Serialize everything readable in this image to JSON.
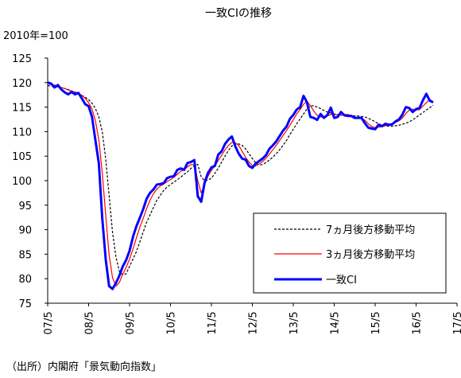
{
  "source_note": "（出所）内閣府「景気動向指数」",
  "chart_data": {
    "type": "line",
    "title": "一致CIの推移",
    "unit_label": "2010年=100",
    "xlabel": "",
    "ylabel": "",
    "ylim": [
      75,
      125
    ],
    "y_ticks": [
      75,
      80,
      85,
      90,
      95,
      100,
      105,
      110,
      115,
      120,
      125
    ],
    "x_start": "2007-05",
    "x_ticks": [
      "07/5",
      "08/5",
      "09/5",
      "10/5",
      "11/5",
      "12/5",
      "13/5",
      "14/5",
      "15/5",
      "16/5",
      "17/5"
    ],
    "grid": false,
    "legend_position": "bottom-right",
    "series": [
      {
        "name": "7ヵ月後方移動平均",
        "color": "#000000",
        "style": "dashed",
        "values": [
          119.4,
          119.3,
          119.2,
          119.1,
          118.9,
          118.8,
          118.6,
          118.3,
          118.1,
          117.8,
          117.4,
          117.0,
          116.5,
          115.8,
          114.7,
          113.0,
          110.0,
          104.5,
          97.0,
          89.5,
          84.5,
          81.5,
          80.8,
          81.0,
          82.5,
          84.0,
          85.5,
          87.5,
          89.5,
          91.5,
          93.0,
          94.5,
          96.0,
          97.0,
          98.0,
          98.7,
          99.2,
          99.7,
          100.2,
          100.7,
          101.3,
          101.8,
          102.5,
          103.0,
          103.3,
          100.8,
          100.0,
          100.1,
          100.5,
          101.5,
          102.5,
          103.8,
          105.0,
          106.2,
          107.1,
          107.5,
          107.5,
          107.2,
          106.5,
          105.5,
          104.5,
          103.6,
          103.2,
          103.3,
          103.7,
          104.2,
          104.8,
          105.5,
          106.3,
          107.2,
          108.2,
          109.4,
          110.5,
          111.6,
          112.6,
          113.6,
          114.6,
          115.2,
          115.3,
          115.0,
          114.7,
          114.3,
          114.0,
          113.8,
          113.6,
          113.5,
          113.4,
          113.4,
          113.3,
          113.3,
          113.2,
          113.2,
          113.1,
          113.0,
          112.7,
          112.4,
          112.0,
          111.6,
          111.3,
          111.2,
          111.1,
          111.1,
          111.2,
          111.3,
          111.5,
          111.7,
          112.0,
          112.4,
          112.9,
          113.4,
          113.9,
          114.4,
          114.9,
          115.4
        ]
      },
      {
        "name": "3ヵ月後方移動平均",
        "color": "#ff0000",
        "style": "solid",
        "values": [
          119.8,
          119.6,
          119.5,
          119.3,
          119.0,
          118.8,
          118.5,
          118.3,
          118.0,
          117.8,
          117.4,
          116.8,
          115.9,
          114.6,
          112.2,
          108.3,
          101.6,
          93.0,
          84.9,
          80.2,
          78.5,
          79.2,
          80.9,
          82.3,
          84.0,
          86.0,
          88.3,
          90.5,
          92.3,
          94.3,
          96.0,
          97.3,
          98.3,
          98.9,
          99.3,
          99.8,
          100.2,
          100.7,
          101.3,
          101.9,
          102.3,
          102.8,
          103.3,
          103.2,
          100.0,
          97.5,
          99.2,
          100.9,
          102.1,
          103.0,
          104.1,
          105.2,
          106.3,
          107.2,
          107.8,
          107.7,
          107.2,
          106.0,
          104.8,
          103.8,
          103.1,
          103.0,
          103.4,
          103.9,
          104.6,
          105.4,
          106.3,
          107.2,
          108.2,
          109.2,
          110.2,
          111.3,
          112.4,
          113.6,
          114.5,
          115.6,
          116.2,
          115.3,
          114.2,
          113.3,
          113.0,
          112.9,
          113.2,
          113.5,
          113.5,
          113.4,
          113.3,
          113.5,
          113.5,
          113.3,
          113.0,
          112.9,
          112.8,
          112.3,
          111.6,
          111.0,
          110.8,
          110.9,
          111.0,
          111.2,
          111.4,
          111.6,
          111.9,
          112.2,
          112.8,
          113.7,
          114.4,
          114.6,
          114.4,
          114.5,
          115.2,
          115.9,
          116.6,
          116.0
        ]
      },
      {
        "name": "一致CI",
        "color": "#0000ff",
        "style": "solid-thick",
        "values": [
          120.0,
          119.8,
          119.0,
          119.5,
          118.6,
          118.0,
          117.6,
          118.1,
          117.6,
          117.9,
          116.8,
          115.6,
          115.2,
          113.0,
          108.2,
          103.5,
          92.3,
          84.0,
          78.5,
          77.9,
          79.1,
          80.6,
          82.5,
          83.8,
          85.7,
          88.5,
          90.7,
          92.4,
          94.2,
          96.3,
          97.5,
          98.2,
          99.2,
          99.3,
          99.5,
          100.5,
          100.8,
          100.9,
          102.2,
          102.5,
          102.2,
          103.6,
          103.8,
          104.2,
          96.8,
          95.7,
          99.6,
          101.6,
          102.7,
          103.0,
          105.3,
          106.0,
          107.5,
          108.4,
          109.0,
          107.0,
          105.5,
          104.5,
          104.3,
          103.0,
          102.6,
          103.5,
          104.0,
          104.5,
          105.2,
          106.5,
          107.2,
          108.0,
          109.1,
          110.2,
          111.0,
          112.6,
          113.4,
          114.5,
          115.0,
          117.3,
          116.0,
          113.0,
          112.8,
          112.4,
          113.6,
          112.8,
          113.4,
          114.9,
          112.8,
          113.0,
          114.0,
          113.3,
          113.2,
          113.2,
          112.8,
          112.8,
          112.8,
          111.7,
          110.8,
          110.6,
          110.5,
          111.4,
          111.1,
          111.6,
          111.4,
          111.5,
          112.1,
          112.5,
          113.5,
          115.0,
          114.8,
          114.0,
          114.6,
          114.8,
          116.4,
          117.7,
          116.3,
          116.0
        ]
      }
    ]
  }
}
